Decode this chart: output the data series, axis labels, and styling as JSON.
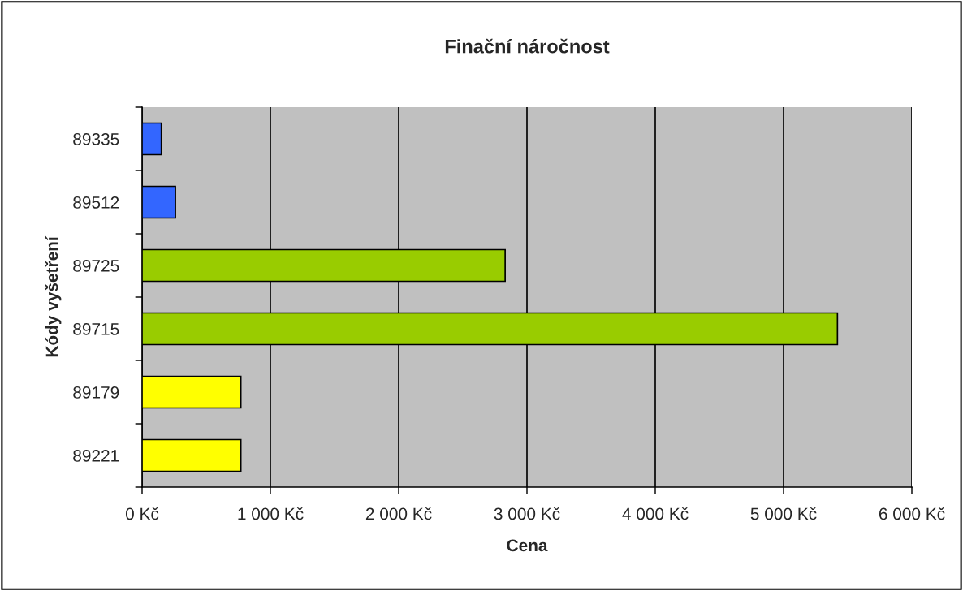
{
  "chart_data": {
    "type": "bar",
    "orientation": "horizontal",
    "title": "Finační náročnost",
    "xlabel": "Cena",
    "ylabel": "Kódy vyšetření",
    "categories": [
      "89335",
      "89512",
      "89725",
      "89715",
      "89179",
      "89221"
    ],
    "values": [
      150,
      260,
      2830,
      5420,
      770,
      770
    ],
    "colors": [
      "#3366ff",
      "#3366ff",
      "#99cc00",
      "#99cc00",
      "#ffff00",
      "#ffff00"
    ],
    "xlim": [
      0,
      6000
    ],
    "xticks": [
      {
        "value": 0,
        "label": "0 Kč"
      },
      {
        "value": 1000,
        "label": "1 000 Kč"
      },
      {
        "value": 2000,
        "label": "2 000 Kč"
      },
      {
        "value": 3000,
        "label": "3 000 Kč"
      },
      {
        "value": 4000,
        "label": "4 000 Kč"
      },
      {
        "value": 5000,
        "label": "5 000 Kč"
      },
      {
        "value": 6000,
        "label": "6 000 Kč"
      }
    ],
    "grid": "x",
    "legend": false
  }
}
